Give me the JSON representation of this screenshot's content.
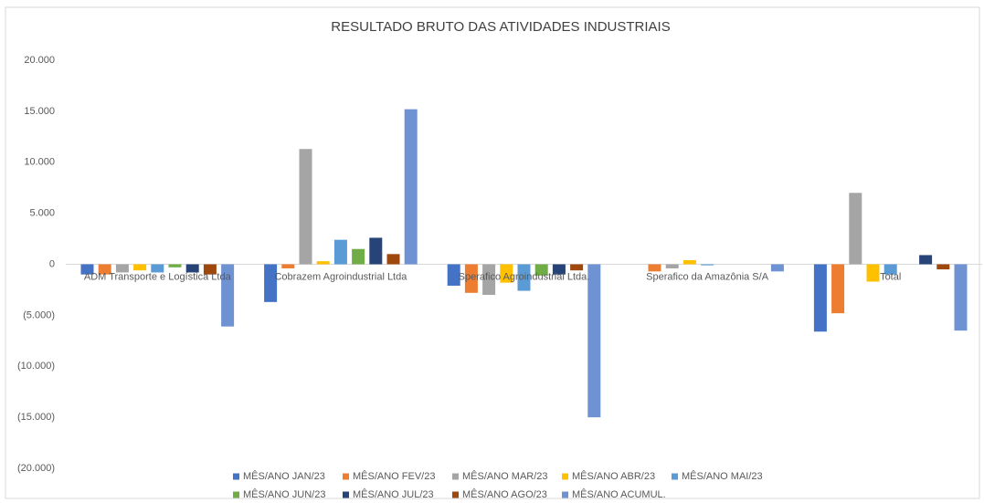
{
  "chart_data": {
    "type": "bar",
    "title": "RESULTADO BRUTO DAS ATIVIDADES INDUSTRIAIS",
    "categories": [
      "ADM Transporte e Logística Ltda",
      "Cobrazem Agroindustrial Ltda",
      "Sperafico Agroindustrial Ltda.",
      "Sperafico da Amazônia S/A",
      "Total"
    ],
    "series": [
      {
        "name": "MÊS/ANO JAN/23",
        "color": "#4472c4",
        "values": [
          -1000,
          -3700,
          -2100,
          0,
          -6600
        ]
      },
      {
        "name": "MÊS/ANO FEV/23",
        "color": "#ed7d31",
        "values": [
          -1000,
          -400,
          -2800,
          -700,
          -4800
        ]
      },
      {
        "name": "MÊS/ANO MAR/23",
        "color": "#a5a5a5",
        "values": [
          -800,
          11300,
          -3000,
          -400,
          7000
        ]
      },
      {
        "name": "MÊS/ANO ABR/23",
        "color": "#ffc000",
        "values": [
          -600,
          300,
          -1800,
          400,
          -1700
        ]
      },
      {
        "name": "MÊS/ANO MAI/23",
        "color": "#5b9bd5",
        "values": [
          -800,
          2400,
          -2600,
          -100,
          -1000
        ]
      },
      {
        "name": "MÊS/ANO JUN/23",
        "color": "#70ad47",
        "values": [
          -300,
          1500,
          -1100,
          0,
          0
        ]
      },
      {
        "name": "MÊS/ANO JUL/23",
        "color": "#264478",
        "values": [
          -800,
          2600,
          -1000,
          0,
          900
        ]
      },
      {
        "name": "MÊS/ANO AGO/23",
        "color": "#9e480e",
        "values": [
          -1000,
          1000,
          -600,
          0,
          -500
        ]
      },
      {
        "name": "MÊS/ANO ACUMUL.",
        "color": "#6f93d2",
        "values": [
          -6100,
          15200,
          -15000,
          -700,
          -6500
        ]
      }
    ],
    "ylim": [
      -20000,
      20000
    ],
    "yticks": [
      {
        "value": 20000,
        "label": "20.000"
      },
      {
        "value": 15000,
        "label": "15.000"
      },
      {
        "value": 10000,
        "label": "10.000"
      },
      {
        "value": 5000,
        "label": "5.000"
      },
      0,
      {
        "value": -5000,
        "label": "(5.000)"
      },
      {
        "value": -10000,
        "label": "(10.000)"
      },
      {
        "value": -15000,
        "label": "(15.000)"
      },
      {
        "value": -20000,
        "label": "(20.000)"
      }
    ],
    "grid": false
  }
}
